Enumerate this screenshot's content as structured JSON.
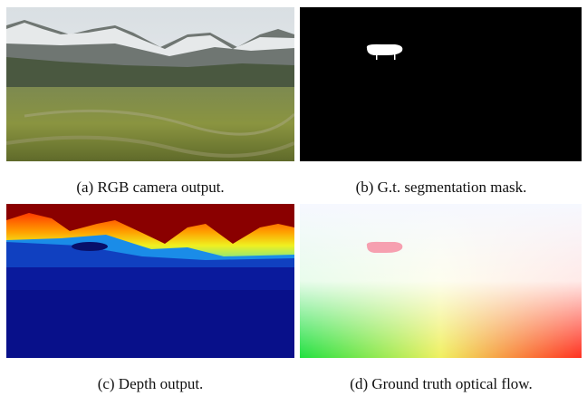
{
  "figure": {
    "panels": [
      {
        "caption": "(a) RGB camera output."
      },
      {
        "caption": "(b) G.t. segmentation mask."
      },
      {
        "caption": "(c) Depth output."
      },
      {
        "caption": "(d) Ground truth optical flow."
      }
    ]
  }
}
